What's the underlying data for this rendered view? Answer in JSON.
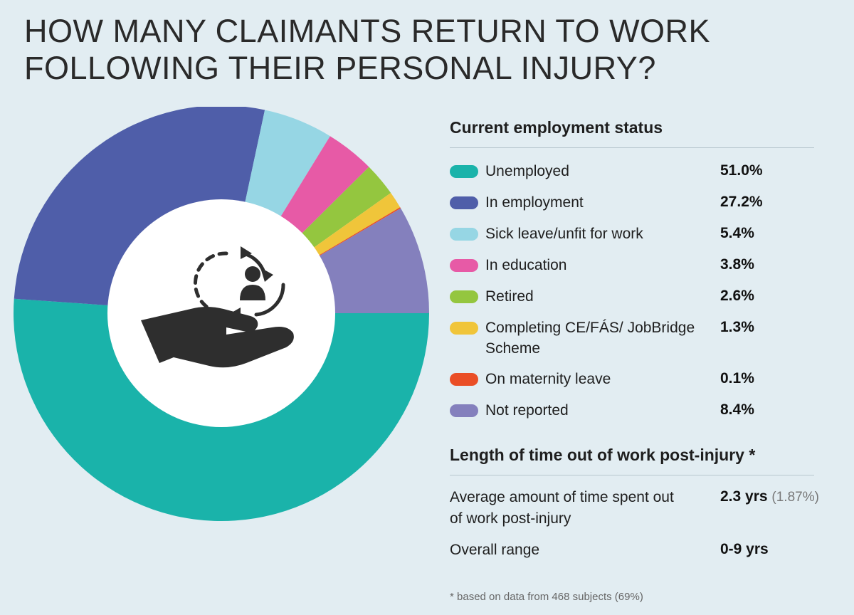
{
  "title": {
    "line1": "HOW MANY CLAIMANTS RETURN TO WORK",
    "line2": "FOLLOWING THEIR PERSONAL INJURY?"
  },
  "chart_data": {
    "type": "pie",
    "donut": true,
    "title": "Current employment status",
    "categories": [
      "Unemployed",
      "In employment",
      "Sick leave/unfit for work",
      "In education",
      "Retired",
      "Completing CE/FÁS/ JobBridge Scheme",
      "On maternity leave",
      "Not reported"
    ],
    "values": [
      51.0,
      27.2,
      5.4,
      3.8,
      2.6,
      1.3,
      0.1,
      8.4
    ],
    "value_labels": [
      "51.0%",
      "27.2%",
      "5.4%",
      "3.8%",
      "2.6%",
      "1.3%",
      "0.1%",
      "8.4%"
    ],
    "colors": [
      "#1ab3aa",
      "#4f5ea9",
      "#96d6e4",
      "#e75aa6",
      "#94c63f",
      "#f0c53a",
      "#ea4e26",
      "#8480bd"
    ],
    "legend_position": "right",
    "center_icon": "hand-holding-person-cycle-icon"
  },
  "stats": {
    "heading": "Length of time out of work post-injury *",
    "rows": [
      {
        "label": "Average amount of time spent out of work post-injury",
        "value": "2.3 yrs",
        "note": "(1.87%)"
      },
      {
        "label": "Overall range",
        "value": "0-9 yrs",
        "note": ""
      }
    ]
  },
  "footnote": "* based on data from 468 subjects (69%)"
}
